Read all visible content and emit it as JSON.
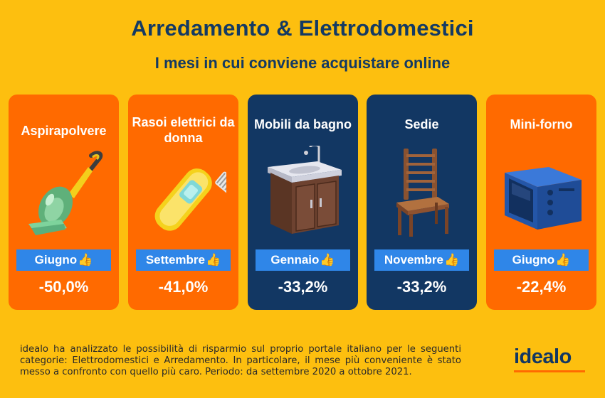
{
  "header": {
    "title": "Arredamento & Elettrodomestici",
    "subtitle": "I mesi in cui conviene acquistare online"
  },
  "cards": [
    {
      "name": "Aspirapolvere",
      "month": "Giugno",
      "percent": "-50,0%",
      "color": "#ff6a00",
      "icon": "vacuum-icon"
    },
    {
      "name": "Rasoi elettrici da donna",
      "month": "Settembre",
      "percent": "-41,0%",
      "color": "#ff6a00",
      "icon": "razor-icon"
    },
    {
      "name": "Mobili da bagno",
      "month": "Gennaio",
      "percent": "-33,2%",
      "color": "#123763",
      "icon": "bathroom-cabinet-icon"
    },
    {
      "name": "Sedie",
      "month": "Novembre",
      "percent": "-33,2%",
      "color": "#123763",
      "icon": "chair-icon"
    },
    {
      "name": "Mini-forno",
      "month": "Giugno",
      "percent": "-22,4%",
      "color": "#ff6a00",
      "icon": "mini-oven-icon"
    }
  ],
  "thumb_glyph": "👍",
  "footer": {
    "text": "idealo ha analizzato le possibilità di risparmio sul proprio portale italiano per le seguenti categorie: Elettrodomestici e Arredamento. In particolare, il mese più conveniente è stato messo a confronto con quello più caro. Periodo: da settembre 2020 a ottobre 2021."
  },
  "logo": {
    "text": "idealo"
  },
  "colors": {
    "background": "#fdbf0f",
    "title": "#143a63",
    "orange_card": "#ff6a00",
    "navy_card": "#123763",
    "month_badge": "#2f86e8"
  }
}
